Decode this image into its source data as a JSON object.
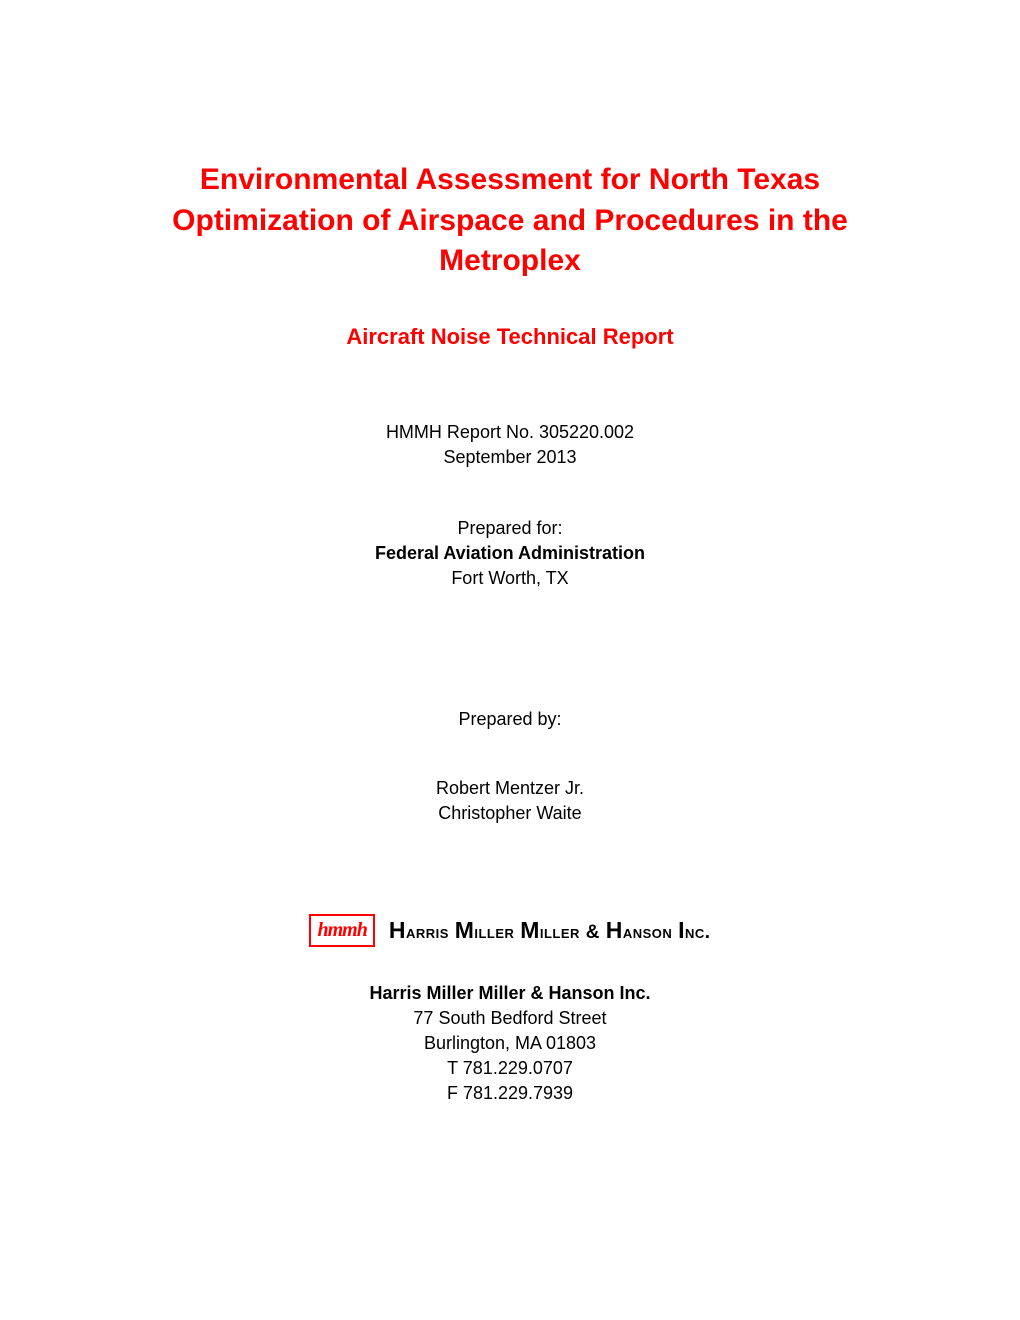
{
  "title": "Environmental Assessment for North Texas Optimization of Airspace and Procedures in the Metroplex",
  "subtitle": "Aircraft Noise Technical Report",
  "report_no": "HMMH Report No. 305220.002",
  "report_date": "September 2013",
  "prepared_for": {
    "label": "Prepared for:",
    "org": "Federal Aviation Administration",
    "location": "Fort Worth, TX"
  },
  "prepared_by": {
    "label": "Prepared by:",
    "authors": [
      "Robert Mentzer Jr.",
      "Christopher Waite"
    ]
  },
  "logo": {
    "mark_text": "hmmh",
    "wordmark": "Harris Miller Miller & Hanson Inc.",
    "border_color": "#ff0000",
    "text_color": "#ff0000"
  },
  "company": {
    "name": "Harris Miller Miller & Hanson Inc.",
    "street": "77 South Bedford Street",
    "city": "Burlington, MA  01803",
    "tel": "T 781.229.0707",
    "fax": "F 781.229.7939"
  },
  "styling": {
    "title_color": "#ff0000",
    "title_fontsize": 30,
    "subtitle_color": "#ff0000",
    "subtitle_fontsize": 22,
    "body_fontsize": 18,
    "background_color": "#ffffff",
    "text_color": "#000000",
    "font_family": "Arial"
  }
}
